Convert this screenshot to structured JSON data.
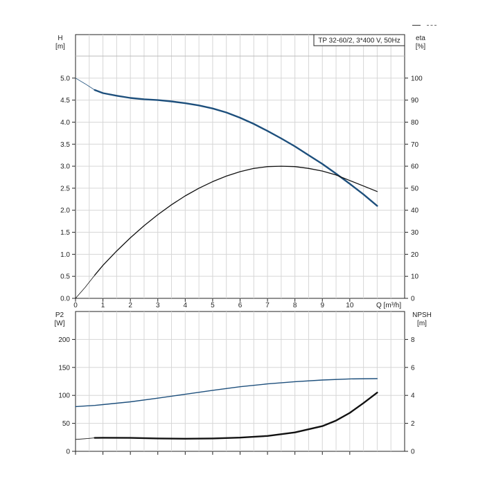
{
  "legend_marks": [
    {
      "style": "solid",
      "color": "#333333"
    },
    {
      "style": "dashed",
      "color": "#666666"
    }
  ],
  "chart_data": [
    {
      "type": "line",
      "title": "TP 32-60/2, 3*400 V, 50Hz",
      "xlabel": "Q [m³/h]",
      "xlim": [
        0,
        12
      ],
      "x_ticks": [
        0,
        1,
        2,
        3,
        4,
        5,
        6,
        7,
        8,
        9,
        10
      ],
      "left_axis": {
        "label_line1": "H",
        "label_line2": "[m]",
        "range": [
          0,
          5.5
        ],
        "ticks": [
          0.0,
          0.5,
          1.0,
          1.5,
          2.0,
          2.5,
          3.0,
          3.5,
          4.0,
          4.5,
          5.0
        ]
      },
      "right_axis": {
        "label_line1": "eta",
        "label_line2": "[%]",
        "range": [
          0,
          110
        ],
        "ticks": [
          0,
          10,
          20,
          30,
          40,
          50,
          60,
          70,
          80,
          90,
          100
        ]
      },
      "grid": true,
      "series": [
        {
          "axis": "left",
          "color": "#1d4f7c",
          "width": 2.4,
          "dashed_until": 0.7,
          "points": [
            [
              0,
              5.0
            ],
            [
              0.35,
              4.87
            ],
            [
              0.7,
              4.73
            ],
            [
              1,
              4.66
            ],
            [
              1.5,
              4.6
            ],
            [
              2,
              4.55
            ],
            [
              2.5,
              4.52
            ],
            [
              3,
              4.5
            ],
            [
              3.5,
              4.47
            ],
            [
              4,
              4.43
            ],
            [
              4.5,
              4.38
            ],
            [
              5,
              4.31
            ],
            [
              5.5,
              4.22
            ],
            [
              6,
              4.1
            ],
            [
              6.5,
              3.96
            ],
            [
              7,
              3.8
            ],
            [
              7.5,
              3.63
            ],
            [
              8,
              3.45
            ],
            [
              8.5,
              3.25
            ],
            [
              9,
              3.05
            ],
            [
              9.5,
              2.83
            ],
            [
              10,
              2.6
            ],
            [
              10.5,
              2.36
            ],
            [
              11,
              2.1
            ]
          ]
        },
        {
          "axis": "right",
          "color": "#111111",
          "width": 1.3,
          "dashed_until": 0.7,
          "points": [
            [
              0,
              0
            ],
            [
              0.35,
              5
            ],
            [
              0.7,
              10.5
            ],
            [
              1,
              15
            ],
            [
              1.5,
              21.5
            ],
            [
              2,
              27.5
            ],
            [
              2.5,
              33
            ],
            [
              3,
              38
            ],
            [
              3.5,
              42.5
            ],
            [
              4,
              46.5
            ],
            [
              4.5,
              50
            ],
            [
              5,
              53
            ],
            [
              5.5,
              55.5
            ],
            [
              6,
              57.5
            ],
            [
              6.5,
              59
            ],
            [
              7,
              59.8
            ],
            [
              7.5,
              60
            ],
            [
              8,
              59.8
            ],
            [
              8.5,
              59
            ],
            [
              9,
              57.8
            ],
            [
              9.5,
              56
            ],
            [
              10,
              53.5
            ],
            [
              10.5,
              51
            ],
            [
              11,
              48.5
            ]
          ]
        }
      ]
    },
    {
      "type": "line",
      "title": "",
      "xlim": [
        0,
        12
      ],
      "x_ticks": [
        0,
        1,
        2,
        3,
        4,
        5,
        6,
        7,
        8,
        9,
        10
      ],
      "left_axis": {
        "label_line1": "P2",
        "label_line2": "[W]",
        "range": [
          0,
          250
        ],
        "ticks": [
          0,
          50,
          100,
          150,
          200
        ]
      },
      "right_axis": {
        "label_line1": "NPSH",
        "label_line2": "[m]",
        "range": [
          0,
          10
        ],
        "ticks": [
          0,
          2,
          4,
          6,
          8
        ]
      },
      "grid": true,
      "series": [
        {
          "axis": "left",
          "color": "#1d4f7c",
          "width": 1.4,
          "dashed_until": 0,
          "points": [
            [
              0,
              80
            ],
            [
              0.7,
              82
            ],
            [
              1,
              83.5
            ],
            [
              2,
              88.5
            ],
            [
              3,
              95
            ],
            [
              4,
              102
            ],
            [
              5,
              109
            ],
            [
              6,
              115.5
            ],
            [
              7,
              120.5
            ],
            [
              8,
              124.5
            ],
            [
              9,
              127.5
            ],
            [
              10,
              129.5
            ],
            [
              11,
              130
            ]
          ]
        },
        {
          "axis": "right",
          "color": "#111111",
          "width": 2.4,
          "dashed_until": 0.7,
          "points": [
            [
              0,
              0.85
            ],
            [
              0.35,
              0.9
            ],
            [
              0.7,
              0.96
            ],
            [
              1,
              0.97
            ],
            [
              2,
              0.96
            ],
            [
              3,
              0.92
            ],
            [
              4,
              0.9
            ],
            [
              5,
              0.92
            ],
            [
              6,
              0.98
            ],
            [
              7,
              1.1
            ],
            [
              8,
              1.35
            ],
            [
              9,
              1.8
            ],
            [
              9.5,
              2.2
            ],
            [
              10,
              2.75
            ],
            [
              10.5,
              3.45
            ],
            [
              11,
              4.2
            ]
          ]
        }
      ]
    }
  ]
}
